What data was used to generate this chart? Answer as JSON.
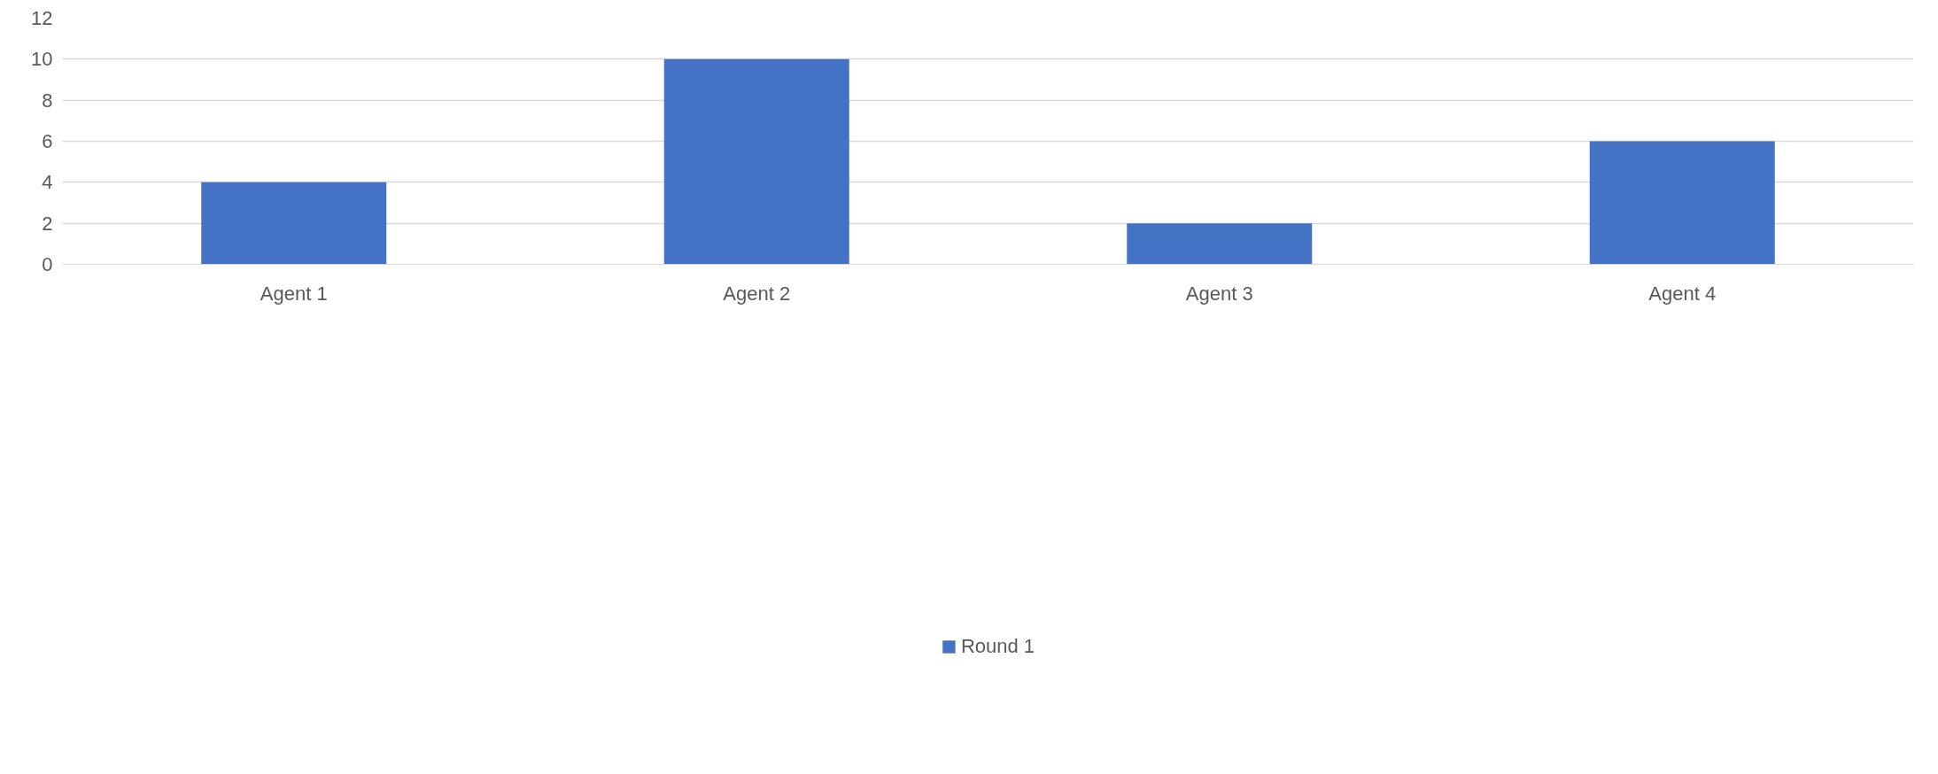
{
  "chart_data": {
    "type": "bar",
    "categories": [
      "Agent 1",
      "Agent 2",
      "Agent 3",
      "Agent 4"
    ],
    "series": [
      {
        "name": "Round 1",
        "color": "#4472c4",
        "values": [
          4,
          10,
          2,
          6
        ]
      }
    ],
    "ylim": [
      0,
      12
    ],
    "yticks": [
      0,
      2,
      4,
      6,
      8,
      10,
      12
    ],
    "grid": "y",
    "legend": "bottom"
  }
}
